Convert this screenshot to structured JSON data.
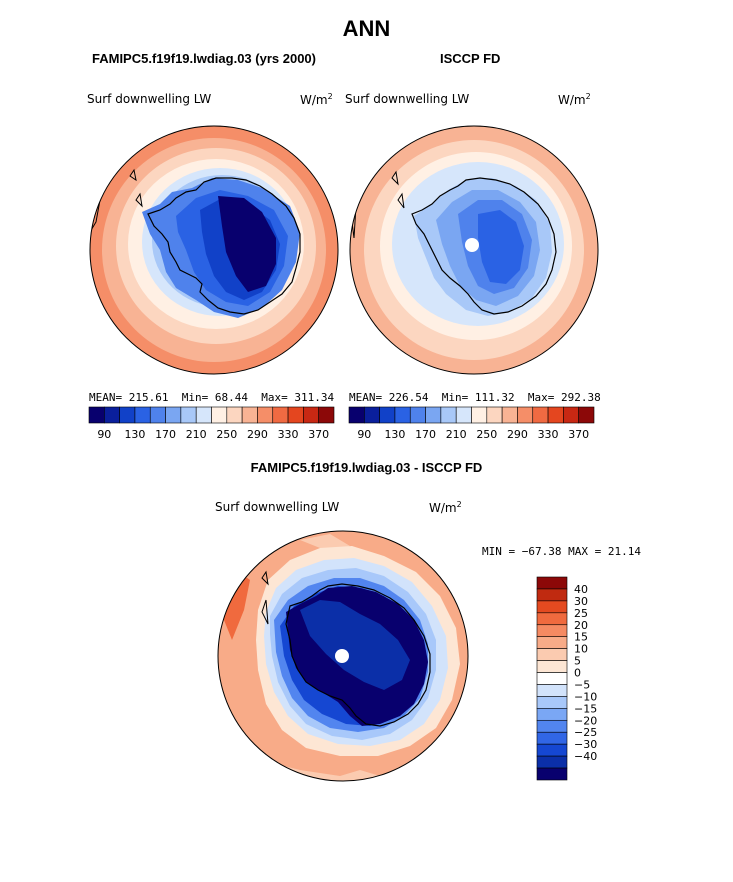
{
  "main_title": "ANN",
  "panels": [
    {
      "heading": "FAMIPC5.f19f19.lwdiag.03 (yrs 2000)",
      "field": "Surf downwelling LW",
      "units": "W/m",
      "units_sup": "2",
      "stats": {
        "mean_label": "MEAN=",
        "mean": "215.61",
        "min_label": "Min=",
        "min": "68.44",
        "max_label": "Max=",
        "max": "311.34"
      }
    },
    {
      "heading": "ISCCP FD",
      "field": "Surf downwelling LW",
      "units": "W/m",
      "units_sup": "2",
      "stats": {
        "mean_label": "MEAN=",
        "mean": "226.54",
        "min_label": "Min=",
        "min": "111.32",
        "max_label": "Max=",
        "max": "292.38"
      }
    },
    {
      "heading": "FAMIPC5.f19f19.lwdiag.03 - ISCCP FD",
      "field": "Surf downwelling LW",
      "units": "W/m",
      "units_sup": "2",
      "minmax": "MIN = −67.38 MAX =  21.14"
    }
  ],
  "colorbar_abs": {
    "colors": [
      "#08006e",
      "#0a1f9c",
      "#1141c8",
      "#2a62e4",
      "#4f82ec",
      "#7aa6f2",
      "#a8c8f8",
      "#d6e6fb",
      "#fff0e4",
      "#fcd6c0",
      "#f8b394",
      "#f58e68",
      "#f06a42",
      "#e4461f",
      "#c82813",
      "#8c0808"
    ],
    "tick_labels": [
      "90",
      "130",
      "170",
      "210",
      "250",
      "290",
      "330",
      "370"
    ]
  },
  "colorbar_diff": {
    "colors": [
      "#08006e",
      "#0b2fa8",
      "#1547d2",
      "#3166e6",
      "#5285ef",
      "#7aa7f5",
      "#a8c8fa",
      "#d2e3fb",
      "#ffffff",
      "#fde6d4",
      "#fbcbb0",
      "#f8ab88",
      "#f58a62",
      "#f06a3e",
      "#e44a20",
      "#c02a10",
      "#8c0808"
    ],
    "tick_labels": [
      "40",
      "30",
      "25",
      "20",
      "15",
      "10",
      "5",
      "0",
      "−5",
      "−10",
      "−15",
      "−20",
      "−25",
      "−30",
      "−40"
    ]
  },
  "colors": {
    "land_outline": "#000000",
    "warm_band": "#f7a986",
    "cold_core": "#08006e",
    "pole_dot": "#ffffff"
  }
}
